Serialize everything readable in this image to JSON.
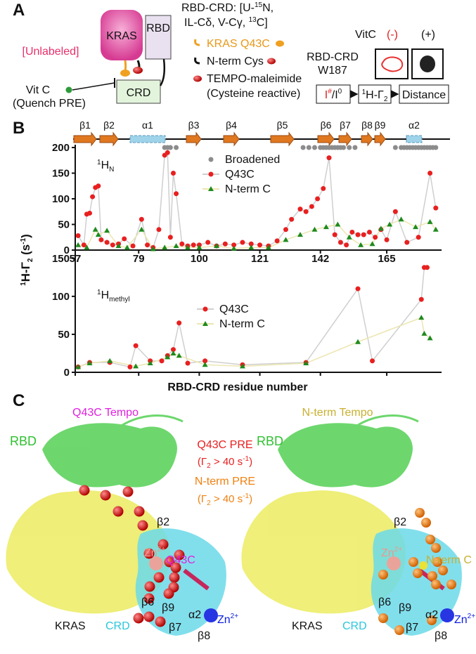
{
  "panel_a": {
    "label": "A",
    "unlabeled": "[Unlabeled]",
    "kras": "KRAS",
    "rbd": "RBD",
    "crd": "CRD",
    "vitc": "Vit C",
    "quench": "(Quench PRE)",
    "title_line1": [
      "RBD-CRD: [U-",
      "15",
      "N,"
    ],
    "title_line2": [
      "IL-Cδ, V-Cγ, ",
      "13",
      "C]"
    ],
    "legend": [
      "KRAS Q43C",
      "N-term Cys",
      "TEMPO-maleimide",
      "(Cysteine reactive)"
    ],
    "vitc_header": "VitC",
    "minus": "(-)",
    "plus": "(+)",
    "i_hash": [
      "I",
      "#"
    ],
    "i_zero": [
      "I",
      "0"
    ],
    "sample": "RBD-CRD",
    "residue": "W187",
    "flow": {
      "ratio": [
        "I",
        "#",
        "/I",
        "0"
      ],
      "gamma": [
        "1",
        "H-Γ",
        "2"
      ],
      "distance": "Distance"
    }
  },
  "panel_b": {
    "label": "B",
    "secondary_structure": [
      "β1",
      "β2",
      "α1",
      "β3",
      "β4",
      "β5",
      "β6",
      "β7",
      "β8",
      "β9",
      "α2"
    ],
    "y_label": [
      "1",
      "H-Γ",
      "2",
      " (s",
      "-1",
      ")"
    ],
    "x_label": "RBD-CRD residue number",
    "top_nucleus": [
      "1",
      "H",
      "N"
    ],
    "bottom_nucleus": [
      "1",
      "H",
      "methyl"
    ]
  },
  "chart_data": [
    {
      "type": "scatter",
      "xlim": [
        57,
        184
      ],
      "xticks": [
        57,
        79,
        100,
        121,
        142,
        165
      ],
      "ylim": [
        0,
        200
      ],
      "yticks": [
        0,
        50,
        100,
        150,
        200
      ],
      "series": [
        {
          "name": "Broadened",
          "color": "#8c8c8c",
          "marker": "circle",
          "x": [
            88,
            89,
            90,
            92,
            136,
            138,
            140,
            142,
            143,
            144,
            145,
            146,
            147,
            148,
            149,
            150,
            152,
            154,
            168,
            170,
            171,
            172,
            173,
            174,
            175,
            176,
            177,
            178,
            179,
            180,
            181,
            182
          ],
          "values": [
            200,
            200,
            200,
            200,
            200,
            200,
            200,
            200,
            200,
            200,
            200,
            200,
            200,
            200,
            200,
            200,
            200,
            200,
            200,
            200,
            200,
            200,
            200,
            200,
            200,
            200,
            200,
            200,
            200,
            200,
            200,
            200
          ]
        },
        {
          "name": "Q43C",
          "color": "#e82020",
          "line_color": "#cfcfcf",
          "marker": "circle",
          "x": [
            58,
            60,
            61,
            62,
            63,
            64,
            65,
            66,
            68,
            70,
            72,
            74,
            77,
            80,
            82,
            84,
            86,
            88,
            89,
            90,
            91,
            92,
            94,
            96,
            98,
            100,
            103,
            106,
            109,
            112,
            115,
            118,
            121,
            124,
            127,
            130,
            132,
            135,
            137,
            139,
            141,
            143,
            145,
            147,
            149,
            151,
            153,
            155,
            157,
            159,
            161,
            163,
            165,
            168,
            172,
            176,
            180,
            182
          ],
          "values": [
            28,
            10,
            70,
            72,
            104,
            122,
            125,
            20,
            15,
            10,
            12,
            22,
            8,
            60,
            10,
            5,
            40,
            185,
            190,
            25,
            150,
            110,
            12,
            8,
            10,
            10,
            15,
            8,
            12,
            10,
            15,
            12,
            10,
            8,
            18,
            40,
            60,
            80,
            75,
            85,
            100,
            120,
            180,
            30,
            15,
            10,
            35,
            30,
            30,
            35,
            25,
            40,
            20,
            75,
            15,
            25,
            150,
            82
          ]
        },
        {
          "name": "N-term C",
          "color": "#1e8a1e",
          "line_color": "#ece6b0",
          "marker": "triangle",
          "x": [
            58,
            61,
            64,
            65,
            68,
            72,
            75,
            80,
            84,
            88,
            92,
            96,
            100,
            106,
            112,
            118,
            124,
            130,
            135,
            140,
            144,
            148,
            152,
            156,
            160,
            163,
            166,
            170,
            175,
            180,
            182
          ],
          "values": [
            10,
            5,
            40,
            30,
            38,
            8,
            5,
            40,
            2,
            5,
            8,
            5,
            5,
            8,
            3,
            5,
            5,
            20,
            30,
            40,
            45,
            50,
            25,
            10,
            12,
            42,
            50,
            60,
            45,
            55,
            40
          ]
        }
      ]
    },
    {
      "type": "scatter",
      "xlim": [
        57,
        184
      ],
      "ylim": [
        0,
        160
      ],
      "yticks": [
        0,
        50,
        100,
        150
      ],
      "series": [
        {
          "name": "Q43C",
          "color": "#e82020",
          "line_color": "#cfcfcf",
          "marker": "circle",
          "x": [
            58,
            62,
            69,
            76,
            78,
            83,
            87,
            89,
            91,
            93,
            96,
            102,
            115,
            137,
            155,
            160,
            177,
            178,
            179
          ],
          "values": [
            7,
            13,
            13,
            7,
            35,
            15,
            15,
            22,
            30,
            65,
            12,
            15,
            10,
            13,
            110,
            15,
            96,
            138,
            138
          ]
        },
        {
          "name": "N-term C",
          "color": "#1e8a1e",
          "line_color": "#ece6b0",
          "marker": "triangle",
          "x": [
            58,
            62,
            69,
            78,
            83,
            89,
            91,
            93,
            102,
            115,
            137,
            155,
            177,
            178,
            180
          ],
          "values": [
            7,
            12,
            15,
            8,
            12,
            20,
            25,
            22,
            10,
            8,
            12,
            40,
            72,
            51,
            45
          ]
        }
      ]
    }
  ],
  "panel_c": {
    "label": "C",
    "q43c_pre": "Q43C PRE",
    "q43c_cut": [
      "(Γ",
      "2",
      " > 40 s",
      "-1",
      ")"
    ],
    "nterm_pre": "N-term  PRE",
    "nterm_cut": [
      "(Γ",
      "2",
      " > 40 s",
      "-1",
      ")"
    ],
    "left": {
      "title": "Q43C Tempo",
      "rbd": "RBD",
      "kras": "KRAS",
      "crd": "CRD",
      "tag": "Q43C",
      "zn_top": [
        "Zn",
        "2+"
      ],
      "zn_bottom": [
        "Zn",
        "2+"
      ],
      "strands": [
        "β2",
        "β6",
        "β9",
        "α2",
        "β7",
        "β8"
      ]
    },
    "right": {
      "title": "N-term Tempo",
      "rbd": "RBD",
      "kras": "KRAS",
      "crd": "CRD",
      "tag": "N-term C",
      "zn_top": [
        "Zn",
        "2+"
      ],
      "zn_bottom": [
        "Zn",
        "2+"
      ],
      "strands": [
        "β2",
        "β6",
        "β9",
        "α2",
        "β7",
        "β8"
      ]
    }
  }
}
